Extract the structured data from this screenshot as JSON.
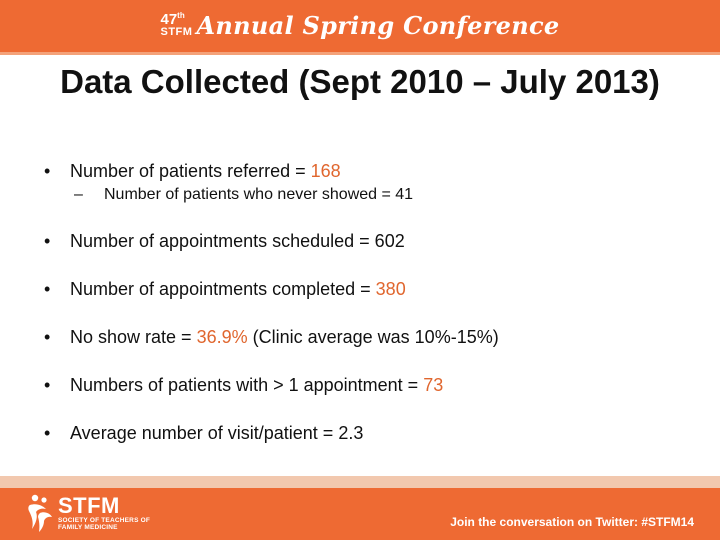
{
  "header": {
    "ordinal_number": "47",
    "ordinal_suffix": "th",
    "org": "STFM",
    "conference_name": "Annual Spring Conference"
  },
  "slide": {
    "title": "Data Collected (Sept 2010 – July 2013)",
    "bullets": {
      "b1_text": "Number of patients referred = ",
      "b1_value": "168",
      "b1_sub_text": "Number of patients who never showed = 41",
      "b2_text": "Number of appointments scheduled = 602",
      "b3_text": "Number of appointments completed = ",
      "b3_value": "380",
      "b4_text": "No show rate = ",
      "b4_value": "36.9%",
      "b4_suffix": " (Clinic average was 10%-15%)",
      "b5_text": "Numbers of patients with > 1 appointment = ",
      "b5_value": "73",
      "b6_text": "Average number of visit/patient = 2.3"
    },
    "bullet_glyph": "•",
    "sub_glyph": "–"
  },
  "footer": {
    "logo_main": "STFM",
    "logo_sub_1": "SOCIETY OF TEACHERS OF",
    "logo_sub_2": "FAMILY MEDICINE",
    "twitter_text": "Join the conversation on Twitter: #STFM14"
  },
  "colors": {
    "brand_orange": "#ee6a33",
    "highlight": "#e0662e"
  }
}
